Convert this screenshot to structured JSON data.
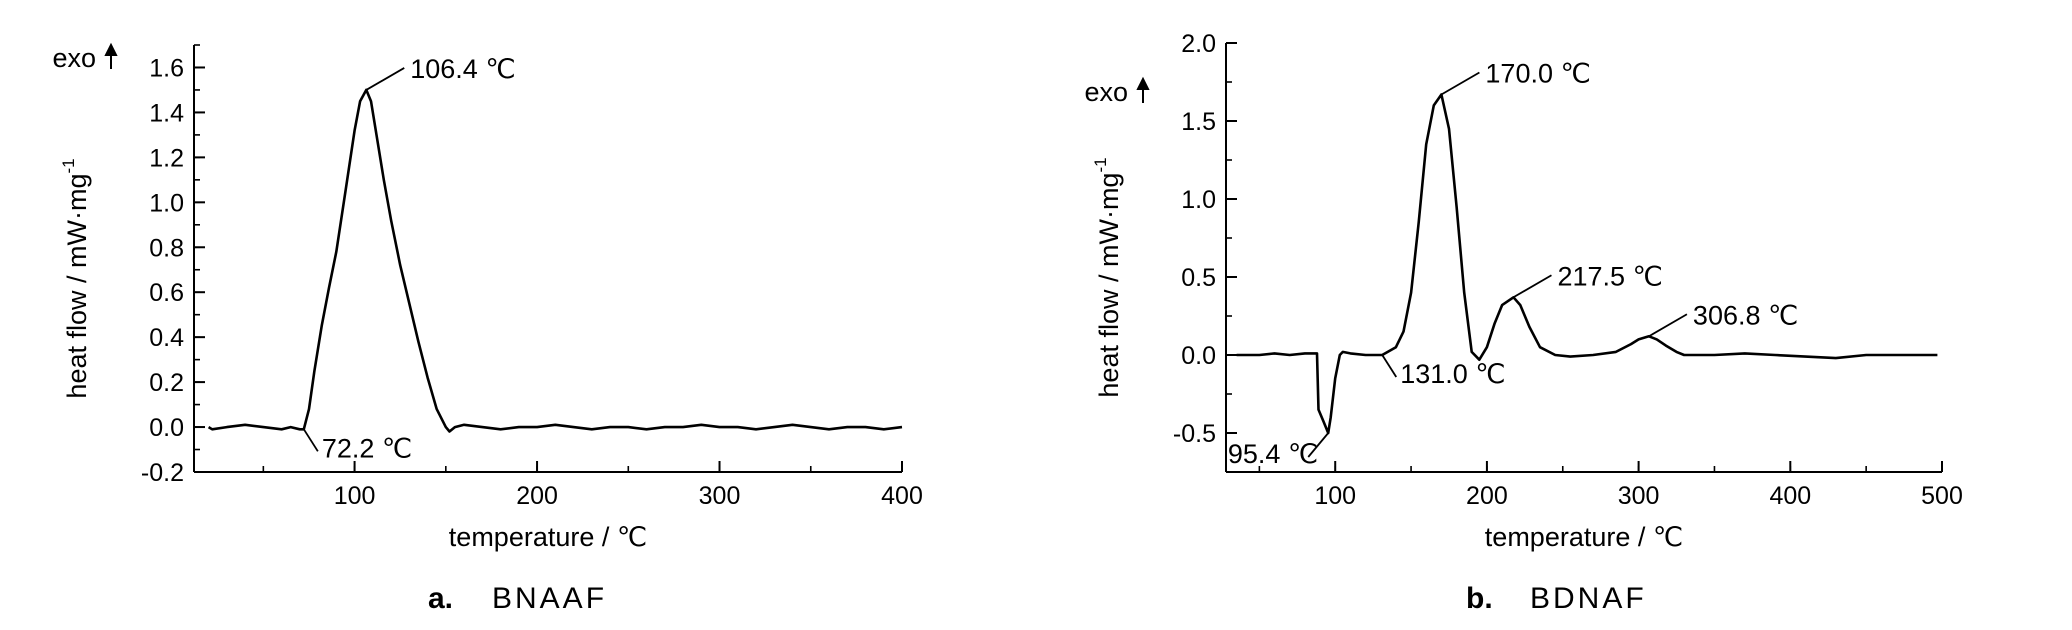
{
  "chart_data": [
    {
      "type": "line",
      "caption_letter": "a.",
      "caption_name": "BNAAF",
      "title": "",
      "xlabel": "temperature / ℃",
      "ylabel": "heat flow / mW·mg",
      "ylabel_superscript": "-1",
      "exo_label": "exo",
      "xlim": [
        12,
        400
      ],
      "ylim": [
        -0.2,
        1.7
      ],
      "x_ticks": [
        100,
        200,
        300,
        400
      ],
      "x_tick_labels": [
        "100",
        "200",
        "300",
        "400"
      ],
      "x_minor_step": 50,
      "y_ticks": [
        -0.2,
        0.0,
        0.2,
        0.4,
        0.6,
        0.8,
        1.0,
        1.2,
        1.4,
        1.6
      ],
      "y_tick_labels": [
        "-0.2",
        "0.0",
        "0.2",
        "0.4",
        "0.6",
        "0.8",
        "1.0",
        "1.2",
        "1.4",
        "1.6"
      ],
      "y_minor_step": 0.1,
      "series": [
        {
          "x": [
            20,
            22,
            30,
            40,
            50,
            60,
            65,
            70,
            72.2,
            75,
            78,
            82,
            86,
            90,
            95,
            100,
            103,
            106.4,
            109,
            112,
            116,
            120,
            125,
            130,
            135,
            140,
            145,
            150,
            152,
            155,
            160,
            170,
            180,
            190,
            200,
            210,
            220,
            230,
            240,
            250,
            260,
            270,
            280,
            290,
            300,
            310,
            320,
            330,
            340,
            350,
            360,
            370,
            380,
            390,
            400
          ],
          "y": [
            0.0,
            -0.01,
            0.0,
            0.01,
            0.0,
            -0.01,
            0.0,
            -0.01,
            -0.01,
            0.08,
            0.25,
            0.45,
            0.62,
            0.78,
            1.05,
            1.32,
            1.45,
            1.5,
            1.45,
            1.3,
            1.1,
            0.92,
            0.72,
            0.55,
            0.38,
            0.22,
            0.08,
            0.0,
            -0.02,
            0.0,
            0.01,
            0.0,
            -0.01,
            0.0,
            0.0,
            0.01,
            0.0,
            -0.01,
            0.0,
            0.0,
            -0.01,
            0.0,
            0.0,
            0.01,
            0.0,
            0.0,
            -0.01,
            0.0,
            0.01,
            0.0,
            -0.01,
            0.0,
            0.0,
            -0.01,
            0.0
          ]
        }
      ],
      "annotations": [
        {
          "text": "106.4 ℃",
          "x": 106.4,
          "y": 1.5,
          "side": "upper-right"
        },
        {
          "text": "72.2 ℃",
          "x": 72.2,
          "y": -0.01,
          "side": "lower-right"
        }
      ]
    },
    {
      "type": "line",
      "caption_letter": "b.",
      "caption_name": "BDNAF",
      "title": "",
      "xlabel": "temperature / ℃",
      "ylabel": "heat flow / mW·mg",
      "ylabel_superscript": "-1",
      "exo_label": "exo",
      "xlim": [
        28,
        500
      ],
      "ylim": [
        -0.75,
        2.0
      ],
      "x_ticks": [
        100,
        200,
        300,
        400,
        500
      ],
      "x_tick_labels": [
        "100",
        "200",
        "300",
        "400",
        "500"
      ],
      "x_minor_step": 50,
      "y_ticks": [
        -0.5,
        0.0,
        0.5,
        1.0,
        1.5,
        2.0
      ],
      "y_tick_labels": [
        "-0.5",
        "0.0",
        "0.5",
        "1.0",
        "1.5",
        "2.0"
      ],
      "y_minor_step": 0.25,
      "series": [
        {
          "x": [
            35,
            50,
            60,
            70,
            80,
            88,
            89,
            92,
            95.4,
            97,
            100,
            103,
            105,
            110,
            120,
            131,
            140,
            145,
            150,
            155,
            160,
            165,
            170,
            175,
            180,
            185,
            190,
            195,
            200,
            205,
            210,
            217.5,
            222,
            228,
            235,
            245,
            255,
            270,
            285,
            295,
            300,
            306.8,
            312,
            318,
            325,
            330,
            350,
            370,
            390,
            410,
            430,
            450,
            470,
            490,
            497
          ],
          "y": [
            0.0,
            0.0,
            0.01,
            0.0,
            0.01,
            0.01,
            -0.35,
            -0.42,
            -0.5,
            -0.4,
            -0.15,
            0.0,
            0.02,
            0.01,
            0.0,
            0.0,
            0.05,
            0.15,
            0.4,
            0.85,
            1.35,
            1.6,
            1.67,
            1.45,
            0.95,
            0.4,
            0.02,
            -0.03,
            0.05,
            0.2,
            0.32,
            0.37,
            0.32,
            0.18,
            0.05,
            0.0,
            -0.01,
            0.0,
            0.02,
            0.07,
            0.1,
            0.12,
            0.1,
            0.06,
            0.02,
            0.0,
            0.0,
            0.01,
            0.0,
            -0.01,
            -0.02,
            0.0,
            0.0,
            0.0,
            0.0
          ]
        }
      ],
      "annotations": [
        {
          "text": "170.0 ℃",
          "x": 170.0,
          "y": 1.67,
          "side": "upper-right"
        },
        {
          "text": "217.5 ℃",
          "x": 217.5,
          "y": 0.37,
          "side": "upper-right"
        },
        {
          "text": "306.8 ℃",
          "x": 306.8,
          "y": 0.12,
          "side": "upper-right"
        },
        {
          "text": "131.0 ℃",
          "x": 131.0,
          "y": 0.0,
          "side": "lower-right"
        },
        {
          "text": "95.4 ℃",
          "x": 95.4,
          "y": -0.5,
          "side": "lower-left"
        }
      ]
    }
  ]
}
